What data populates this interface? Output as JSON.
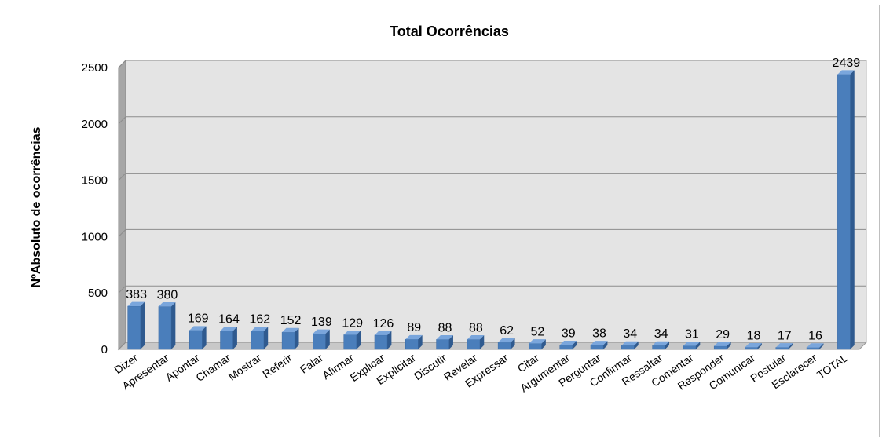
{
  "chart_data": {
    "type": "bar",
    "title": "Total Ocorrências",
    "xlabel": "",
    "ylabel": "NºAbsoluto de ocorrências",
    "categories": [
      "Dizer",
      "Apresentar",
      "Apontar",
      "Chamar",
      "Mostrar",
      "Referir",
      "Falar",
      "Afirmar",
      "Explicar",
      "Explicitar",
      "Discutir",
      "Revelar",
      "Expressar",
      "Citar",
      "Argumentar",
      "Perguntar",
      "Confirmar",
      "Ressaltar",
      "Comentar",
      "Responder",
      "Comunicar",
      "Postular",
      "Esclarecer",
      "TOTAL"
    ],
    "values": [
      383,
      380,
      169,
      164,
      162,
      152,
      139,
      129,
      126,
      89,
      88,
      88,
      62,
      52,
      39,
      38,
      34,
      34,
      31,
      29,
      18,
      17,
      16,
      2439
    ],
    "ylim": [
      0,
      2500
    ],
    "yticks": [
      0,
      500,
      1000,
      1500,
      2000,
      2500
    ],
    "grid": true,
    "style": "3d-column",
    "colors": {
      "bar_front": "#4a7ebb",
      "bar_top": "#7aa6dc",
      "bar_side": "#2f5a8f",
      "plot_back_wall": "#e4e4e4",
      "floor": "#c8c8c8",
      "side_wall": "#a6a6a6",
      "gridline": "#8c8c8c"
    }
  }
}
